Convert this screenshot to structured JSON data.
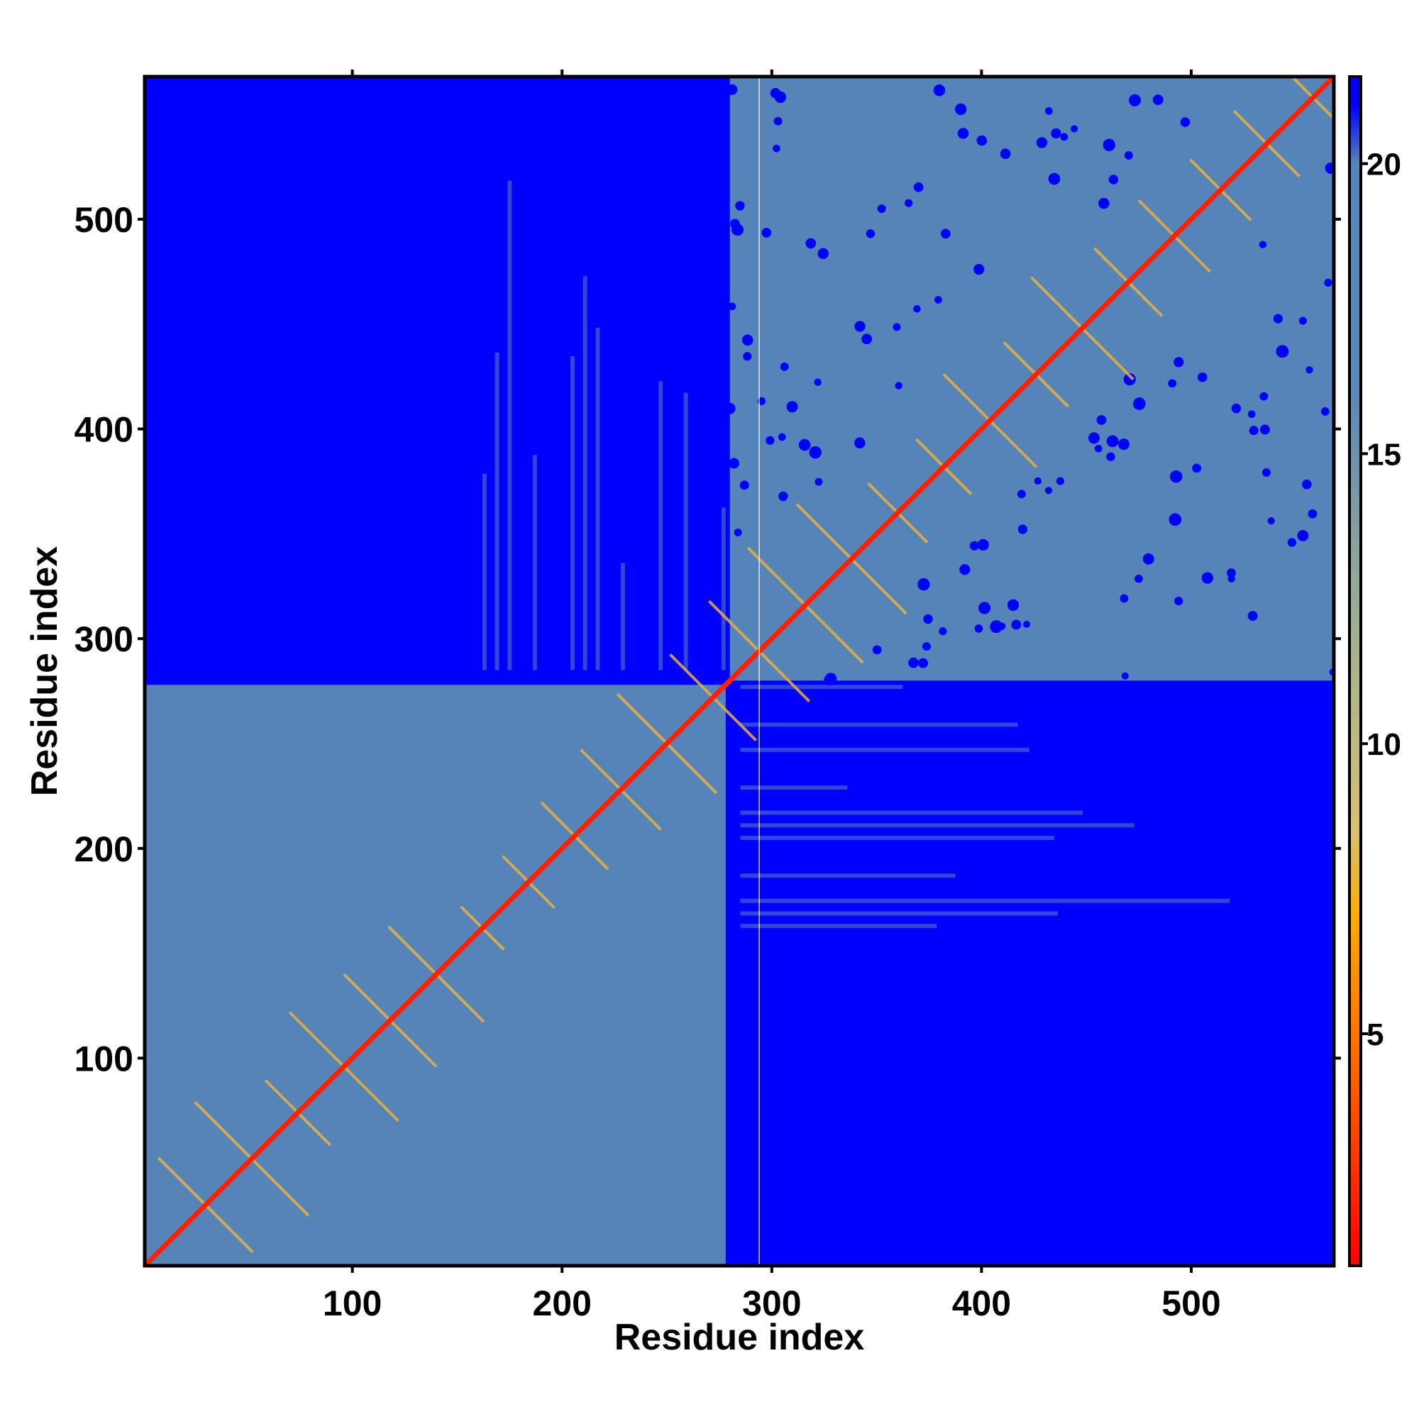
{
  "chart_data": {
    "type": "heatmap",
    "title": "",
    "xlabel": "Residue index",
    "ylabel": "Residue index",
    "xlim": [
      1,
      568
    ],
    "ylim": [
      1,
      568
    ],
    "x_ticks": [
      100,
      200,
      300,
      400,
      500
    ],
    "y_ticks": [
      100,
      200,
      300,
      400,
      500
    ],
    "top_ticks": [
      100,
      200,
      300,
      400,
      500
    ],
    "right_ticks": [
      100,
      200,
      300,
      400,
      500
    ],
    "domains": [
      {
        "start": 1,
        "end": 278
      },
      {
        "start": 280,
        "end": 568
      }
    ],
    "domain_boundary": 280,
    "gap_column": 294,
    "colorbar": {
      "range": [
        1,
        21.5
      ],
      "ticks": [
        5,
        10,
        15,
        20
      ],
      "colors": [
        {
          "value": 1,
          "color": "#ff0000"
        },
        {
          "value": 4,
          "color": "#ff5a00"
        },
        {
          "value": 7,
          "color": "#ffaa00"
        },
        {
          "value": 8.5,
          "color": "#d8c070"
        },
        {
          "value": 12,
          "color": "#a0b090"
        },
        {
          "value": 16,
          "color": "#5a88b8"
        },
        {
          "value": 20,
          "color": "#5584b9"
        },
        {
          "value": 21,
          "color": "#0000ff"
        }
      ]
    },
    "colors": {
      "background": "#0000ff",
      "domain_fill": "#5584b9",
      "diagonal": "#ff2000",
      "contact_band": "#e8b040"
    }
  }
}
